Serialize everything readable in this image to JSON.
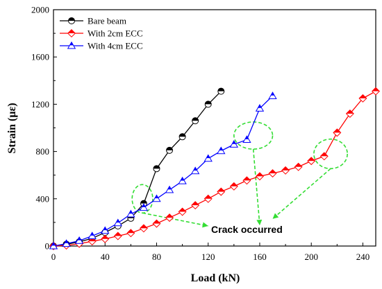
{
  "chart_data": {
    "type": "line",
    "xlabel": "Load (kN)",
    "ylabel": "Strain (με)",
    "xlim": [
      0,
      250
    ],
    "ylim": [
      0,
      2000
    ],
    "xticks": [
      0,
      40,
      80,
      120,
      160,
      200,
      240
    ],
    "yticks": [
      0,
      400,
      800,
      1200,
      1600,
      2000
    ],
    "grid": false,
    "legend_position": "top-left",
    "series": [
      {
        "name": "Bare beam",
        "color": "#000000",
        "marker": "half-filled-circle",
        "x": [
          0,
          10,
          20,
          30,
          40,
          50,
          60,
          70,
          80,
          90,
          100,
          110,
          120,
          130
        ],
        "y": [
          0,
          15,
          35,
          65,
          115,
          170,
          235,
          360,
          655,
          810,
          925,
          1060,
          1200,
          1310
        ]
      },
      {
        "name": "With 2cm ECC",
        "color": "#ff0000",
        "marker": "half-filled-diamond",
        "x": [
          0,
          10,
          20,
          30,
          40,
          50,
          60,
          70,
          80,
          90,
          100,
          110,
          120,
          130,
          140,
          150,
          160,
          170,
          180,
          190,
          200,
          210,
          220,
          230,
          240,
          250
        ],
        "y": [
          0,
          5,
          20,
          40,
          60,
          85,
          110,
          150,
          190,
          240,
          290,
          345,
          400,
          460,
          505,
          555,
          590,
          615,
          640,
          670,
          720,
          760,
          960,
          1120,
          1250,
          1310
        ]
      },
      {
        "name": "With 4cm ECC",
        "color": "#0000ff",
        "marker": "half-filled-triangle",
        "x": [
          0,
          10,
          20,
          30,
          40,
          50,
          60,
          70,
          80,
          90,
          100,
          110,
          120,
          130,
          140,
          150,
          160,
          170
        ],
        "y": [
          0,
          20,
          45,
          85,
          130,
          195,
          270,
          325,
          400,
          475,
          550,
          635,
          740,
          805,
          860,
          900,
          1165,
          1270
        ]
      }
    ],
    "annotations": [
      {
        "text": "Crack occurred",
        "color": "#33dd33",
        "ellipses": [
          {
            "cx": 69,
            "cy": 400,
            "rx": 8,
            "ry": 120
          },
          {
            "cx": 155,
            "cy": 935,
            "rx": 15,
            "ry": 115
          },
          {
            "cx": 215,
            "cy": 780,
            "rx": 13,
            "ry": 125
          }
        ],
        "label_at": [
          150,
          110
        ],
        "arrows": [
          {
            "from": [
              69,
              280
            ],
            "to": [
              120,
              170
            ]
          },
          {
            "from": [
              155,
              820
            ],
            "to": [
              160,
              175
            ]
          },
          {
            "from": [
              215,
              655
            ],
            "to": [
              170,
              230
            ]
          }
        ]
      }
    ]
  }
}
